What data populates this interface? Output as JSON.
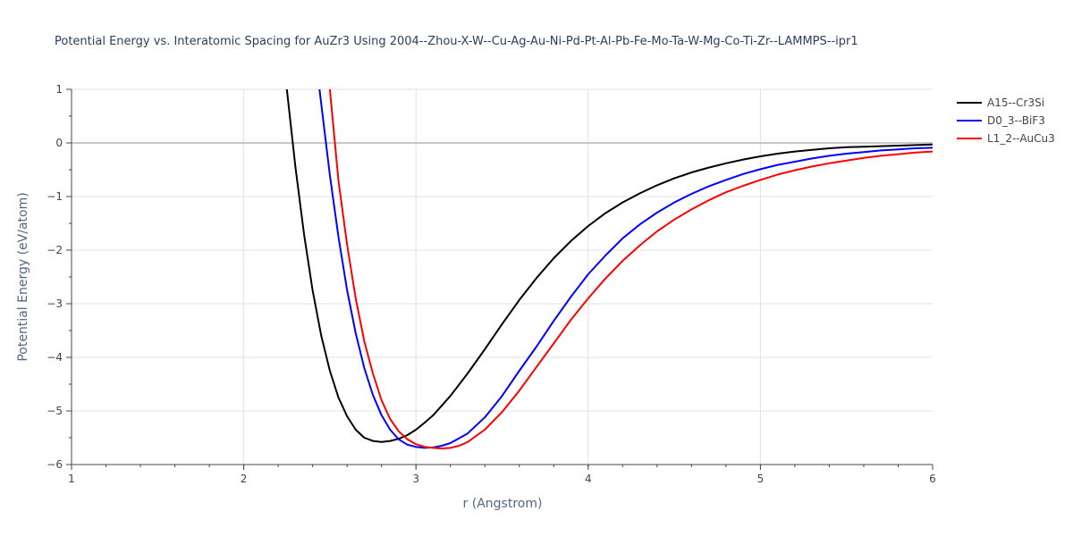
{
  "chart_data": {
    "type": "line",
    "title": "Potential Energy vs. Interatomic Spacing for AuZr3 Using 2004--Zhou-X-W--Cu-Ag-Au-Ni-Pd-Pt-Al-Pb-Fe-Mo-Ta-W-Mg-Co-Ti-Zr--LAMMPS--ipr1",
    "xlabel": "r (Angstrom)",
    "ylabel": "Potential Energy (eV/atom)",
    "xlim": [
      1,
      6
    ],
    "ylim": [
      -6,
      1
    ],
    "xticks": [
      1,
      2,
      3,
      4,
      5,
      6
    ],
    "xtick_labels": [
      "1",
      "2",
      "3",
      "4",
      "5",
      "6"
    ],
    "yticks": [
      1,
      0,
      -1,
      -2,
      -3,
      -4,
      -5,
      -6
    ],
    "ytick_labels": [
      "1",
      "0",
      "−1",
      "−2",
      "−3",
      "−4",
      "−5",
      "−6"
    ],
    "legend_position": "top-right, outside plot",
    "series": [
      {
        "name": "A15--Cr3Si",
        "color": "#000000",
        "x": [
          2.25,
          2.3,
          2.35,
          2.4,
          2.45,
          2.5,
          2.55,
          2.6,
          2.65,
          2.7,
          2.75,
          2.8,
          2.85,
          2.9,
          2.95,
          3.0,
          3.05,
          3.1,
          3.2,
          3.3,
          3.4,
          3.5,
          3.6,
          3.7,
          3.8,
          3.9,
          4.0,
          4.1,
          4.2,
          4.3,
          4.4,
          4.5,
          4.6,
          4.7,
          4.8,
          4.9,
          5.0,
          5.1,
          5.2,
          5.3,
          5.4,
          5.5,
          5.6,
          5.7,
          5.8,
          5.9,
          6.0
        ],
        "y": [
          1.0,
          -0.45,
          -1.7,
          -2.75,
          -3.6,
          -4.25,
          -4.75,
          -5.1,
          -5.35,
          -5.5,
          -5.56,
          -5.58,
          -5.56,
          -5.52,
          -5.45,
          -5.35,
          -5.22,
          -5.08,
          -4.72,
          -4.3,
          -3.85,
          -3.38,
          -2.93,
          -2.52,
          -2.15,
          -1.83,
          -1.55,
          -1.31,
          -1.11,
          -0.94,
          -0.79,
          -0.66,
          -0.55,
          -0.46,
          -0.38,
          -0.31,
          -0.25,
          -0.2,
          -0.16,
          -0.13,
          -0.1,
          -0.08,
          -0.07,
          -0.06,
          -0.05,
          -0.04,
          -0.03
        ]
      },
      {
        "name": "D0_3--BiF3",
        "color": "#0000ff",
        "x": [
          2.44,
          2.5,
          2.55,
          2.6,
          2.65,
          2.7,
          2.75,
          2.8,
          2.85,
          2.9,
          2.95,
          3.0,
          3.05,
          3.1,
          3.15,
          3.2,
          3.3,
          3.4,
          3.5,
          3.6,
          3.7,
          3.8,
          3.9,
          4.0,
          4.1,
          4.2,
          4.3,
          4.4,
          4.5,
          4.6,
          4.7,
          4.8,
          4.9,
          5.0,
          5.1,
          5.2,
          5.3,
          5.4,
          5.5,
          5.6,
          5.7,
          5.8,
          5.9,
          6.0
        ],
        "y": [
          1.0,
          -0.6,
          -1.75,
          -2.75,
          -3.55,
          -4.2,
          -4.7,
          -5.08,
          -5.35,
          -5.53,
          -5.63,
          -5.67,
          -5.69,
          -5.68,
          -5.65,
          -5.6,
          -5.42,
          -5.12,
          -4.72,
          -4.25,
          -3.8,
          -3.32,
          -2.87,
          -2.45,
          -2.1,
          -1.78,
          -1.52,
          -1.3,
          -1.11,
          -0.95,
          -0.81,
          -0.69,
          -0.58,
          -0.49,
          -0.41,
          -0.35,
          -0.29,
          -0.24,
          -0.2,
          -0.17,
          -0.14,
          -0.12,
          -0.1,
          -0.09
        ]
      },
      {
        "name": "L1_2--AuCu3",
        "color": "#ff0000",
        "x": [
          2.5,
          2.55,
          2.6,
          2.65,
          2.7,
          2.75,
          2.8,
          2.85,
          2.9,
          2.95,
          3.0,
          3.05,
          3.1,
          3.15,
          3.2,
          3.25,
          3.3,
          3.4,
          3.5,
          3.6,
          3.7,
          3.8,
          3.9,
          4.0,
          4.1,
          4.2,
          4.3,
          4.4,
          4.5,
          4.6,
          4.7,
          4.8,
          4.9,
          5.0,
          5.1,
          5.2,
          5.3,
          5.4,
          5.5,
          5.6,
          5.7,
          5.8,
          5.9,
          6.0
        ],
        "y": [
          1.0,
          -0.7,
          -1.9,
          -2.9,
          -3.7,
          -4.3,
          -4.8,
          -5.15,
          -5.38,
          -5.53,
          -5.62,
          -5.67,
          -5.69,
          -5.7,
          -5.69,
          -5.65,
          -5.58,
          -5.35,
          -5.02,
          -4.62,
          -4.18,
          -3.74,
          -3.3,
          -2.9,
          -2.53,
          -2.2,
          -1.91,
          -1.65,
          -1.43,
          -1.24,
          -1.07,
          -0.92,
          -0.8,
          -0.69,
          -0.59,
          -0.51,
          -0.44,
          -0.38,
          -0.33,
          -0.28,
          -0.24,
          -0.21,
          -0.18,
          -0.16
        ]
      }
    ]
  }
}
